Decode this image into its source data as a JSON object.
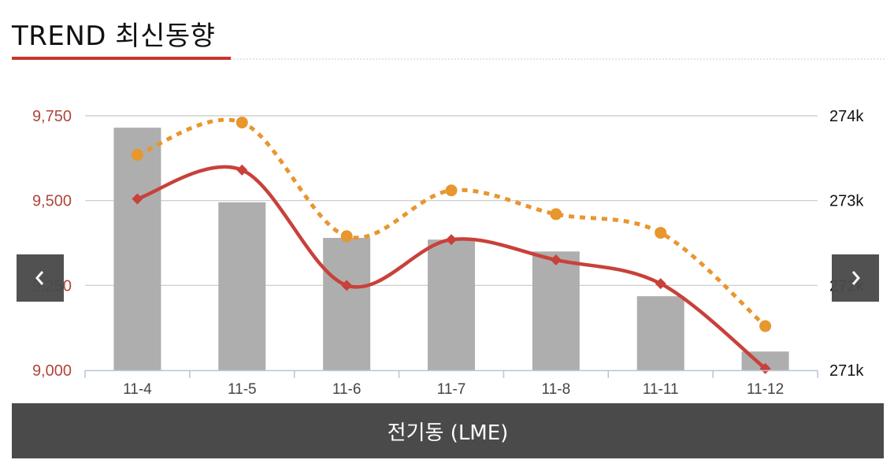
{
  "header": {
    "title": "TREND 최신동향"
  },
  "footer": {
    "label": "전기동 (LME)"
  },
  "nav": {
    "prev_icon": "chevron-left-icon",
    "next_icon": "chevron-right-icon"
  },
  "colors": {
    "bar": "#aeaeae",
    "line_solid": "#c8413a",
    "line_dotted": "#e8962e",
    "accent": "#c8372f",
    "grid": "#c8c8c8"
  },
  "chart_data": {
    "type": "bar",
    "categories": [
      "11-4",
      "11-5",
      "11-6",
      "11-7",
      "11-8",
      "11-11",
      "11-12"
    ],
    "left_axis": {
      "ylim": [
        9000,
        9750
      ],
      "ticks": [
        9000,
        9250,
        9500,
        9750
      ],
      "tick_labels": [
        "9,000",
        "9,250",
        "9,500",
        "9,750"
      ]
    },
    "right_axis": {
      "ylim": [
        271000,
        274000
      ],
      "ticks": [
        271000,
        272000,
        273000,
        274000
      ],
      "tick_labels": [
        "271k",
        "272k",
        "273k",
        "274k"
      ]
    },
    "series": [
      {
        "kind": "bar",
        "axis": "left",
        "values": [
          9715,
          9495,
          9390,
          9385,
          9350,
          9218,
          9055
        ]
      },
      {
        "kind": "line",
        "style": "solid",
        "marker": "diamond",
        "axis": "left",
        "values": [
          9505,
          9590,
          9250,
          9385,
          9325,
          9255,
          9005
        ]
      },
      {
        "kind": "line",
        "style": "dotted",
        "marker": "circle",
        "axis": "left",
        "values": [
          9635,
          9730,
          9395,
          9530,
          9460,
          9405,
          9130
        ]
      }
    ],
    "grid": true
  }
}
